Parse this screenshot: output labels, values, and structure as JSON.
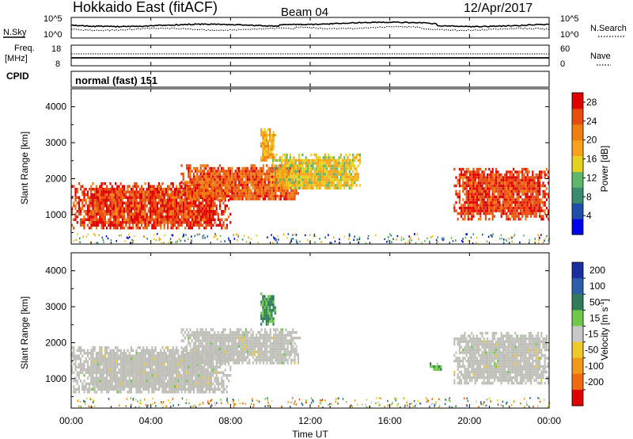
{
  "header": {
    "title": "Hokkaido East (fitACF)",
    "beam": "Beam 04",
    "date": "12/Apr/2017"
  },
  "noise_panel": {
    "left_label": "N.Sky",
    "right_label": "N.Search",
    "ticks": [
      "10^5",
      "10^0"
    ]
  },
  "freq_panel": {
    "left_label_1": "Freq.",
    "left_label_2": "[MHz]",
    "left_ticks": [
      "18",
      "8"
    ],
    "right_label": "Nave",
    "right_ticks": [
      "60",
      "0"
    ]
  },
  "cpid_panel": {
    "label": "CPID",
    "value": "normal (fast) 151"
  },
  "colors": {
    "power_scale": [
      "#0000ee",
      "#1f4fa8",
      "#3a8c6f",
      "#5fb86a",
      "#e6d21e",
      "#f7a21a",
      "#f07f12",
      "#e84d10",
      "#e00000"
    ],
    "velocity_scale": [
      "#1c2fa0",
      "#2b5fa8",
      "#2f7c5a",
      "#6ec84a",
      "#c8c8c8",
      "#f0c828",
      "#f09a18",
      "#f06a10",
      "#e00000"
    ],
    "ground_scatter": "#bfbfb8"
  },
  "chart_data": [
    {
      "type": "heatmap",
      "name": "power",
      "ylabel": "Slant Range [km]",
      "yticks": [
        1000,
        2000,
        3000,
        4000
      ],
      "xticks": [
        "00:00",
        "04:00",
        "08:00",
        "12:00",
        "16:00",
        "20:00",
        "00:00"
      ],
      "xlim_hours": [
        0,
        24
      ],
      "ylim_km": [
        180,
        4500
      ],
      "colorbar": {
        "label": "Power [dB]",
        "ticks": [
          4,
          8,
          12,
          16,
          20,
          24,
          28
        ],
        "range": [
          0,
          30
        ]
      },
      "echo_regions": [
        {
          "t": [
            0,
            8
          ],
          "range_km": [
            600,
            1900
          ],
          "value_db": 26
        },
        {
          "t": [
            5.5,
            11.5
          ],
          "range_km": [
            1400,
            2400
          ],
          "value_db": 24
        },
        {
          "t": [
            9.5,
            10.2
          ],
          "range_km": [
            2500,
            3400
          ],
          "value_db": 18
        },
        {
          "t": [
            10,
            14.5
          ],
          "range_km": [
            1700,
            2700
          ],
          "value_db": 16
        },
        {
          "t": [
            19.2,
            24
          ],
          "range_km": [
            900,
            2300
          ],
          "value_db": 26
        }
      ]
    },
    {
      "type": "heatmap",
      "name": "velocity",
      "ylabel": "Slant Range [km]",
      "yticks": [
        1000,
        2000,
        3000,
        4000
      ],
      "xticks": [
        "00:00",
        "04:00",
        "08:00",
        "12:00",
        "16:00",
        "20:00",
        "00:00"
      ],
      "xlabel": "Time UT",
      "xlim_hours": [
        0,
        24
      ],
      "ylim_km": [
        180,
        4500
      ],
      "colorbar": {
        "label": "Velocity [m s^-1]",
        "ticks": [
          200,
          100,
          50,
          15,
          -15,
          -50,
          -100,
          -200
        ]
      },
      "echo_regions": [
        {
          "t": [
            0,
            8
          ],
          "range_km": [
            600,
            1900
          ],
          "velocity": 0,
          "ground_scatter": true
        },
        {
          "t": [
            5.5,
            11.5
          ],
          "range_km": [
            1400,
            2400
          ],
          "velocity": 0,
          "ground_scatter": true
        },
        {
          "t": [
            9.5,
            10.2
          ],
          "range_km": [
            2500,
            3400
          ],
          "velocity": 60
        },
        {
          "t": [
            18,
            18.6
          ],
          "range_km": [
            1250,
            1450
          ],
          "velocity": 40
        },
        {
          "t": [
            19.2,
            24
          ],
          "range_km": [
            900,
            2300
          ],
          "velocity": 0,
          "ground_scatter": true
        }
      ]
    }
  ],
  "text": {
    "ylabel": "Slant Range [km]",
    "xlabel": "Time UT",
    "power_cb_label": "Power [dB]",
    "vel_cb_label_main": "Velocity [m s",
    "vel_cb_label_sup": "-1",
    "vel_cb_label_end": "]"
  }
}
